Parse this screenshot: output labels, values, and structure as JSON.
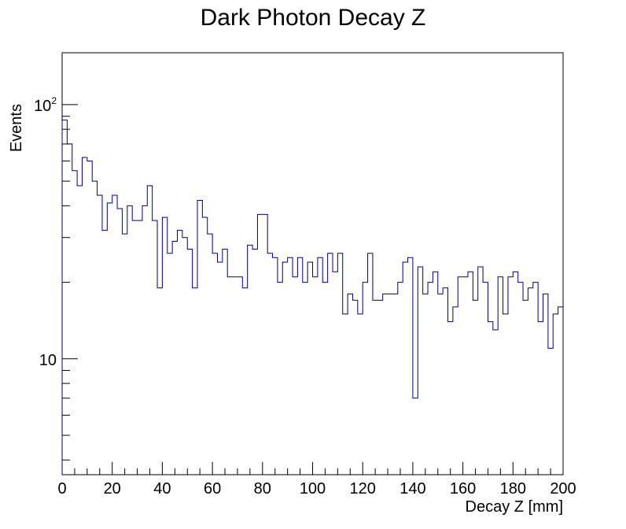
{
  "chart_data": {
    "type": "histogram",
    "title": "Dark Photon Decay Z",
    "xlabel": "Decay Z [mm]",
    "ylabel": "Events",
    "xlim": [
      0,
      200
    ],
    "ylim": [
      3.5,
      160
    ],
    "y_scale": "log",
    "line_color": "#00007f",
    "bin_width": 2,
    "x_ticks": [
      0,
      20,
      40,
      60,
      80,
      100,
      120,
      140,
      160,
      180,
      200
    ],
    "x_tick_labels": [
      "0",
      "20",
      "40",
      "60",
      "80",
      "100",
      "120",
      "140",
      "160",
      "180",
      "200"
    ],
    "y_ticks": [
      {
        "value": 10,
        "base": "10",
        "exp": ""
      },
      {
        "value": 100,
        "base": "10",
        "exp": "2"
      }
    ],
    "values": [
      87,
      70,
      55,
      48,
      62,
      60,
      50,
      44,
      32,
      41,
      44,
      39,
      31,
      40,
      35,
      35,
      40,
      48,
      35,
      19,
      36,
      26,
      29,
      32,
      30,
      27,
      19,
      42,
      36,
      31,
      26,
      24,
      27,
      21,
      21,
      21,
      19,
      28,
      27,
      37,
      37,
      26,
      25,
      20,
      24,
      25,
      21,
      25,
      20,
      24,
      21,
      25,
      20,
      26,
      22,
      26,
      15,
      18,
      17,
      15,
      20,
      26,
      17,
      17,
      18,
      18,
      18,
      20,
      24,
      25,
      7,
      23,
      18,
      20,
      22,
      18,
      19,
      14,
      16,
      21,
      21,
      22,
      17,
      23,
      20,
      14,
      13,
      21,
      15,
      21,
      22,
      20,
      17,
      19,
      20,
      14,
      18,
      11,
      15,
      16
    ]
  }
}
